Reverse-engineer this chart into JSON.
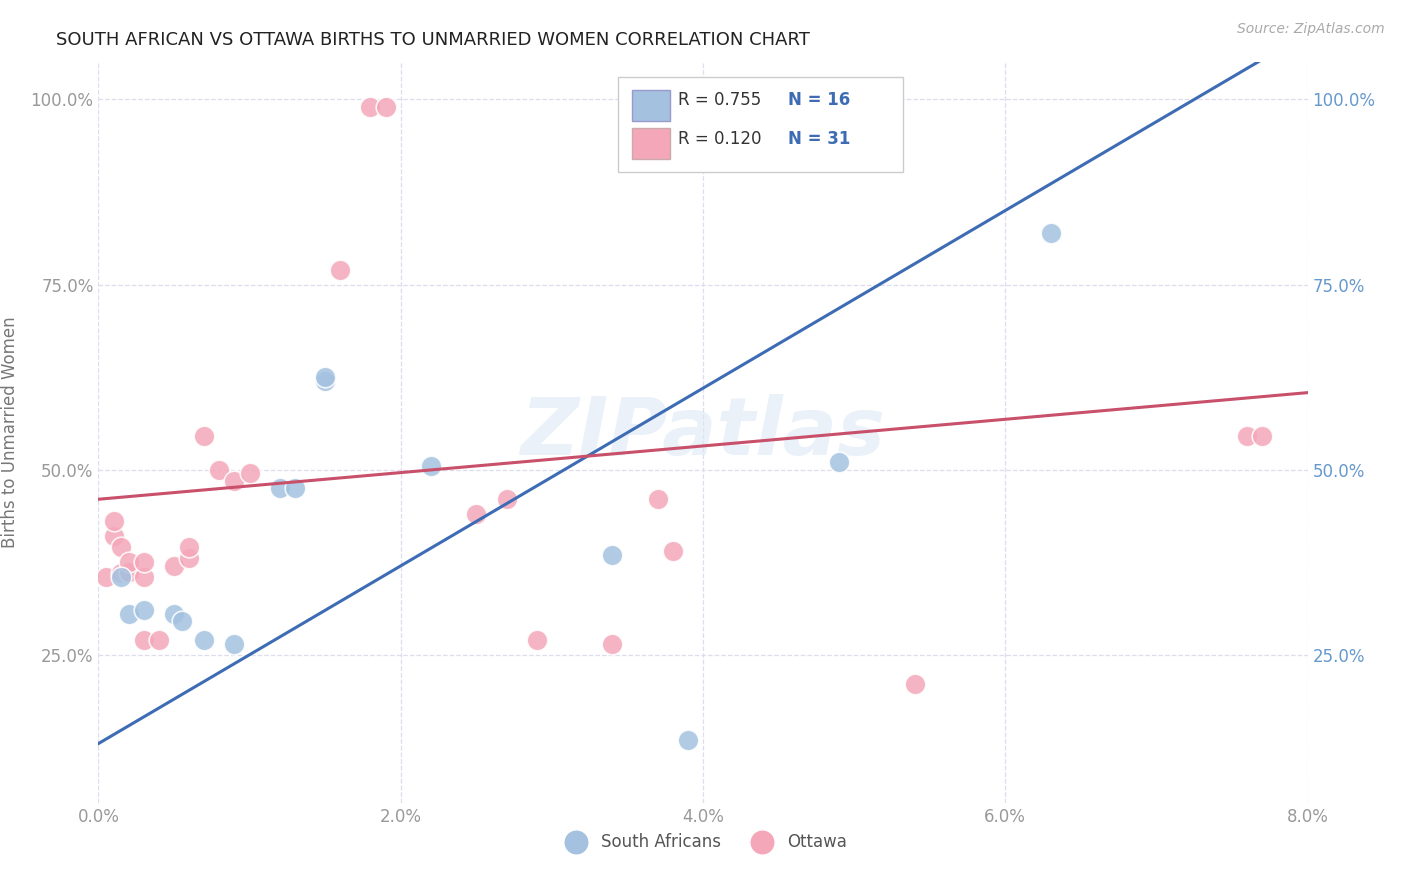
{
  "title": "SOUTH AFRICAN VS OTTAWA BIRTHS TO UNMARRIED WOMEN CORRELATION CHART",
  "source": "Source: ZipAtlas.com",
  "ylabel_label": "Births to Unmarried Women",
  "xlim": [
    0.0,
    0.08
  ],
  "ylim": [
    0.05,
    1.05
  ],
  "legend_labels": [
    "South Africans",
    "Ottawa"
  ],
  "legend_r_blue": "R = 0.755",
  "legend_n_blue": "N = 16",
  "legend_r_pink": "R = 0.120",
  "legend_n_pink": "N = 31",
  "blue_scatter_color": "#a4c2e0",
  "pink_scatter_color": "#f4a7b9",
  "blue_line_color": "#3d6cb5",
  "pink_line_color": "#c9506a",
  "watermark": "ZIPatlas",
  "south_african_points": [
    [
      0.0015,
      0.355
    ],
    [
      0.002,
      0.305
    ],
    [
      0.003,
      0.31
    ],
    [
      0.005,
      0.305
    ],
    [
      0.0055,
      0.295
    ],
    [
      0.007,
      0.27
    ],
    [
      0.009,
      0.265
    ],
    [
      0.012,
      0.475
    ],
    [
      0.013,
      0.475
    ],
    [
      0.015,
      0.62
    ],
    [
      0.015,
      0.625
    ],
    [
      0.022,
      0.505
    ],
    [
      0.034,
      0.385
    ],
    [
      0.039,
      0.135
    ],
    [
      0.049,
      0.51
    ],
    [
      0.063,
      0.82
    ]
  ],
  "ottawa_points": [
    [
      0.0005,
      0.355
    ],
    [
      0.001,
      0.41
    ],
    [
      0.001,
      0.43
    ],
    [
      0.0015,
      0.36
    ],
    [
      0.0015,
      0.395
    ],
    [
      0.002,
      0.36
    ],
    [
      0.002,
      0.362
    ],
    [
      0.002,
      0.375
    ],
    [
      0.003,
      0.355
    ],
    [
      0.003,
      0.375
    ],
    [
      0.003,
      0.27
    ],
    [
      0.004,
      0.27
    ],
    [
      0.005,
      0.37
    ],
    [
      0.006,
      0.38
    ],
    [
      0.006,
      0.395
    ],
    [
      0.007,
      0.545
    ],
    [
      0.008,
      0.5
    ],
    [
      0.009,
      0.485
    ],
    [
      0.01,
      0.495
    ],
    [
      0.016,
      0.77
    ],
    [
      0.018,
      0.99
    ],
    [
      0.019,
      0.99
    ],
    [
      0.025,
      0.44
    ],
    [
      0.027,
      0.46
    ],
    [
      0.029,
      0.27
    ],
    [
      0.034,
      0.265
    ],
    [
      0.037,
      0.46
    ],
    [
      0.038,
      0.39
    ],
    [
      0.054,
      0.21
    ],
    [
      0.076,
      0.545
    ],
    [
      0.077,
      0.545
    ]
  ],
  "blue_line_slope": 12.0,
  "blue_line_intercept": 0.13,
  "pink_line_slope": 1.8,
  "pink_line_intercept": 0.46,
  "grid_color": "#ddddee",
  "tick_color_left": "#999999",
  "tick_color_right": "#6699cc"
}
